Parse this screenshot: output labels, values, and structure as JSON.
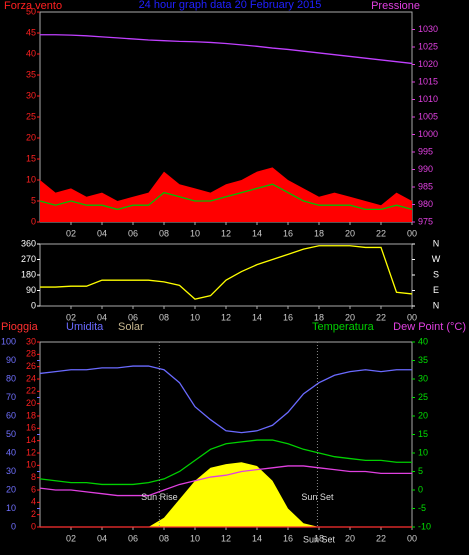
{
  "chart_data": [
    {
      "type": "line",
      "title": "24 hour graph data  20 February 2015",
      "ylabel": "Forza vento",
      "y2label": "Pressione",
      "x": [
        0,
        1,
        2,
        3,
        4,
        5,
        6,
        7,
        8,
        9,
        10,
        11,
        12,
        13,
        14,
        15,
        16,
        17,
        18,
        19,
        20,
        21,
        22,
        23,
        24
      ],
      "xlim": [
        0,
        24
      ],
      "xticks": [
        {
          "value": 2,
          "label": "02"
        },
        {
          "value": 4,
          "label": "04"
        },
        {
          "value": 6,
          "label": "06"
        },
        {
          "value": 8,
          "label": "08"
        },
        10,
        12,
        14,
        16,
        18,
        20,
        22,
        {
          "value": 24,
          "label": "00"
        }
      ],
      "ylim": [
        0,
        50
      ],
      "yticks": [
        0,
        5,
        10,
        15,
        20,
        25,
        30,
        35,
        40,
        45,
        50
      ],
      "ycolor": "#ff2020",
      "y2lim": [
        975,
        1035
      ],
      "y2ticks": [
        975,
        980,
        985,
        990,
        995,
        1000,
        1005,
        1010,
        1015,
        1020,
        1025,
        1030
      ],
      "y2color": "#e040e0",
      "series": [
        {
          "style": "area",
          "color": "#ff0000",
          "values": [
            10,
            7,
            8,
            6,
            7,
            5,
            6,
            7,
            12,
            9,
            8,
            7,
            9,
            10,
            12,
            13,
            10,
            8,
            6,
            7,
            6,
            5,
            4,
            7,
            5
          ]
        },
        {
          "style": "line",
          "color": "#00c000",
          "values": [
            5,
            4,
            5,
            4,
            4,
            3,
            4,
            4,
            7,
            6,
            5,
            5,
            6,
            7,
            8,
            9,
            7,
            5,
            4,
            4,
            4,
            3,
            3,
            4,
            3
          ]
        },
        {
          "style": "line",
          "color": "#c040ff",
          "axis": "y2",
          "values": [
            1028.5,
            1028.5,
            1028.4,
            1028.2,
            1027.9,
            1027.6,
            1027.3,
            1027,
            1026.8,
            1026.6,
            1026.5,
            1026.3,
            1026,
            1025.6,
            1025.2,
            1024.7,
            1024.3,
            1023.8,
            1023.3,
            1022.8,
            1022.3,
            1021.8,
            1021.3,
            1020.8,
            1020.3
          ]
        }
      ]
    },
    {
      "type": "line",
      "x": [
        0,
        1,
        2,
        3,
        4,
        5,
        6,
        7,
        8,
        9,
        10,
        11,
        12,
        13,
        14,
        15,
        16,
        17,
        18,
        19,
        20,
        21,
        22,
        23,
        24
      ],
      "xlim": [
        0,
        24
      ],
      "xticks": [
        {
          "value": 2,
          "label": "02"
        },
        {
          "value": 4,
          "label": "04"
        },
        {
          "value": 6,
          "label": "06"
        },
        {
          "value": 8,
          "label": "08"
        },
        10,
        12,
        14,
        16,
        18,
        20,
        22,
        {
          "value": 24,
          "label": "00"
        }
      ],
      "ylim": [
        0,
        360
      ],
      "yticks": [
        0,
        90,
        180,
        270,
        360
      ],
      "ycolor": "#ffffff",
      "y2lim": [
        0,
        360
      ],
      "y2ticks": [
        {
          "value": 0,
          "label": "N"
        },
        {
          "value": 90,
          "label": "E"
        },
        {
          "value": 180,
          "label": "S"
        },
        {
          "value": 270,
          "label": "W"
        },
        {
          "value": 360,
          "label": "N"
        }
      ],
      "y2color": "#ffffff",
      "series": [
        {
          "style": "line",
          "color": "#ffff00",
          "values": [
            110,
            110,
            115,
            115,
            150,
            150,
            150,
            150,
            140,
            120,
            40,
            60,
            150,
            200,
            240,
            270,
            300,
            330,
            350,
            350,
            350,
            340,
            340,
            80,
            70
          ]
        }
      ]
    },
    {
      "type": "line",
      "x": [
        0,
        1,
        2,
        3,
        4,
        5,
        6,
        7,
        8,
        9,
        10,
        11,
        12,
        13,
        14,
        15,
        16,
        17,
        18,
        19,
        20,
        21,
        22,
        23,
        24
      ],
      "xlim": [
        0,
        24
      ],
      "xticks": [
        {
          "value": 2,
          "label": "02"
        },
        {
          "value": 4,
          "label": "04"
        },
        {
          "value": 6,
          "label": "06"
        },
        {
          "value": 8,
          "label": "08"
        },
        10,
        12,
        14,
        16,
        18,
        20,
        22,
        {
          "value": 24,
          "label": "00"
        }
      ],
      "ylim": [
        0,
        100
      ],
      "yticks": [
        0,
        10,
        20,
        30,
        40,
        50,
        60,
        70,
        80,
        90,
        100
      ],
      "ycolor": "#7070ff",
      "y3lim": [
        0,
        30
      ],
      "y3ticks": [
        0,
        2,
        4,
        6,
        8,
        10,
        12,
        14,
        16,
        18,
        20,
        22,
        24,
        26,
        28,
        30
      ],
      "y3color": "#ff2020",
      "y2lim": [
        -10,
        40
      ],
      "y2ticks": [
        -10,
        -5,
        0,
        5,
        10,
        15,
        20,
        25,
        30,
        35,
        40
      ],
      "y2color": "#00e000",
      "series": [
        {
          "name": "Solar",
          "style": "area",
          "color": "#ffff00",
          "values": [
            0,
            0,
            0,
            0,
            0,
            0,
            0,
            0,
            5,
            15,
            25,
            32,
            34,
            35,
            33,
            25,
            10,
            2,
            0,
            0,
            0,
            0,
            0,
            0,
            0
          ]
        },
        {
          "name": "Pioggia",
          "style": "line",
          "color": "#ff3030",
          "axis": "y3",
          "values": [
            0,
            0,
            0,
            0,
            0,
            0,
            0,
            0,
            0,
            0,
            0,
            0,
            0,
            0,
            0,
            0,
            0,
            0,
            0,
            0,
            0,
            0,
            0,
            0,
            0
          ]
        },
        {
          "name": "Umidita",
          "style": "line",
          "color": "#6a6aff",
          "values": [
            83,
            84,
            85,
            85,
            86,
            86,
            87,
            87,
            85,
            78,
            65,
            58,
            52,
            51,
            52,
            55,
            62,
            72,
            78,
            82,
            84,
            85,
            84,
            85,
            85
          ]
        },
        {
          "name": "Temperatura",
          "style": "line",
          "color": "#00d000",
          "axis": "y2",
          "values": [
            3,
            2.5,
            2,
            2,
            1.5,
            1.5,
            1.5,
            2,
            3,
            5,
            8,
            11,
            12.5,
            13,
            13.5,
            13.5,
            12.5,
            11,
            10,
            9,
            8.5,
            8,
            8,
            7.5,
            7.5
          ]
        },
        {
          "name": "Dew Point (°C)",
          "style": "line",
          "color": "#e040e0",
          "axis": "y2",
          "values": [
            0.5,
            0,
            0,
            -0.5,
            -1,
            -1.5,
            -1.5,
            -1.5,
            0,
            1.5,
            2.5,
            3.5,
            4,
            5,
            5.5,
            6,
            6.5,
            6.5,
            6,
            5.5,
            5,
            5,
            4.5,
            4.5,
            4.5
          ]
        }
      ],
      "annotations": [
        {
          "text": "Sun Rise",
          "x": 7.7,
          "y": 16
        },
        {
          "text": "Sun Set",
          "x": 17.9,
          "y": 16
        },
        {
          "text": "Sun Set",
          "x": 18,
          "y": -7
        }
      ]
    }
  ]
}
